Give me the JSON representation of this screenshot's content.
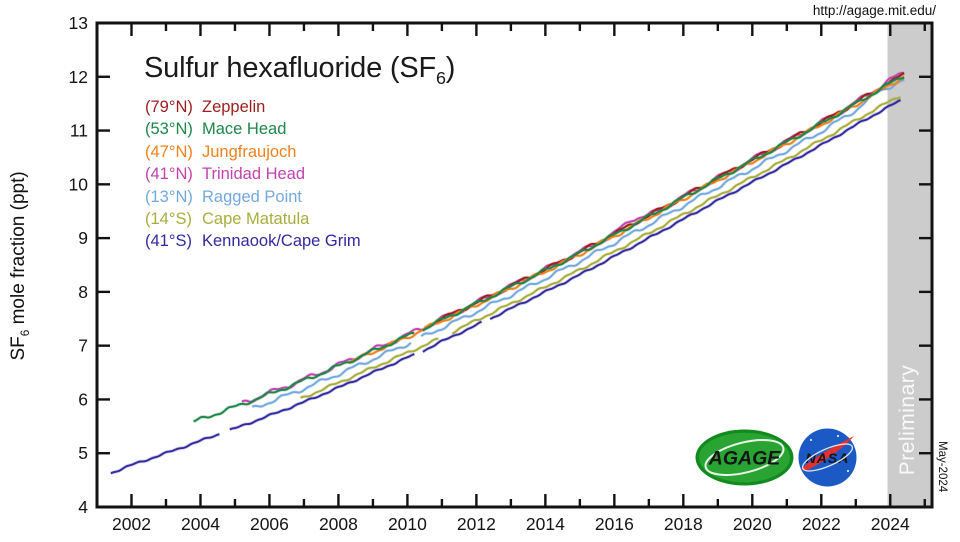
{
  "header": {
    "url": "http://agage.mit.edu/"
  },
  "title": {
    "prefix": "Sulfur hexafluoride (SF",
    "sub": "6",
    "suffix": ")"
  },
  "y_axis": {
    "label_prefix": "SF",
    "label_sub": "6",
    "label_suffix": " mole fraction (ppt)"
  },
  "logos": {
    "agage": "AGAGE",
    "nasa": "NASA"
  },
  "legend": {
    "items": [
      {
        "lat": "(79°N)",
        "name": "Zeppelin",
        "color": "#9a2020"
      },
      {
        "lat": "(53°N)",
        "name": "Mace Head",
        "color": "#1d8649"
      },
      {
        "lat": "(47°N)",
        "name": "Jungfraujoch",
        "color": "#f0821e"
      },
      {
        "lat": "(41°N)",
        "name": "Trinidad Head",
        "color": "#c243ae"
      },
      {
        "lat": "(13°N)",
        "name": "Ragged Point",
        "color": "#74a9de"
      },
      {
        "lat": "(14°S)",
        "name": "Cape Matatula",
        "color": "#a8ad3c"
      },
      {
        "lat": "(41°S)",
        "name": "Kennaook/Cape Grim",
        "color": "#322a9d"
      }
    ]
  },
  "chart_data": {
    "type": "line",
    "title": "Sulfur hexafluoride (SF6)",
    "xlabel": "",
    "ylabel": "SF6 mole fraction (ppt)",
    "xlim": [
      2001,
      2025.21
    ],
    "ylim": [
      4,
      13
    ],
    "x_major_ticks": [
      2002,
      2004,
      2006,
      2008,
      2010,
      2012,
      2014,
      2016,
      2018,
      2020,
      2022,
      2024
    ],
    "x_minor_ticks": [
      2001,
      2003,
      2005,
      2007,
      2009,
      2011,
      2013,
      2015,
      2017,
      2019,
      2021,
      2023,
      2025
    ],
    "y_ticks": [
      4,
      5,
      6,
      7,
      8,
      9,
      10,
      11,
      12,
      13
    ],
    "grid": false,
    "legend_position": "upper-left",
    "stamp": "May-2024",
    "preliminary": {
      "label": "Preliminary",
      "start_year": 2023.92,
      "color": "#cccccc"
    },
    "series": [
      {
        "name": "Ragged Point",
        "lat": "(13°N)",
        "color": "#74a9de",
        "wiggle": 0.03,
        "wiggle2": 0.012,
        "phase": 0.8,
        "segments": [
          [
            [
              2005.5,
              5.83
            ],
            [
              2006,
              5.95
            ],
            [
              2007,
              6.2
            ],
            [
              2008,
              6.47
            ],
            [
              2009,
              6.75
            ],
            [
              2010,
              7.03
            ],
            [
              2010.1,
              7.06
            ]
          ],
          [
            [
              2010.4,
              7.15
            ],
            [
              2011,
              7.33
            ],
            [
              2012,
              7.63
            ],
            [
              2013,
              7.94
            ],
            [
              2014,
              8.25
            ],
            [
              2015,
              8.57
            ],
            [
              2016,
              8.91
            ],
            [
              2017,
              9.25
            ],
            [
              2018,
              9.6
            ],
            [
              2019,
              9.95
            ],
            [
              2020,
              10.29
            ],
            [
              2021,
              10.63
            ],
            [
              2022,
              10.98
            ],
            [
              2023,
              11.38
            ],
            [
              2023.7,
              11.75
            ],
            [
              2024,
              11.82
            ],
            [
              2024.4,
              11.93
            ]
          ]
        ]
      },
      {
        "name": "Trinidad Head",
        "lat": "(41°N)",
        "color": "#c243ae",
        "wiggle": 0.038,
        "wiggle2": 0.013,
        "phase": 0.15,
        "segments": [
          [
            [
              2005.2,
              5.93
            ],
            [
              2006,
              6.12
            ],
            [
              2007,
              6.37
            ],
            [
              2008,
              6.64
            ],
            [
              2009,
              6.92
            ],
            [
              2010,
              7.2
            ],
            [
              2011,
              7.5
            ],
            [
              2012,
              7.8
            ],
            [
              2013,
              8.11
            ],
            [
              2014,
              8.42
            ],
            [
              2015,
              8.74
            ],
            [
              2016,
              9.08
            ],
            [
              2016.5,
              9.36
            ],
            [
              2017,
              9.42
            ],
            [
              2018,
              9.77
            ],
            [
              2019,
              10.12
            ],
            [
              2020,
              10.46
            ],
            [
              2021,
              10.8
            ],
            [
              2022,
              11.15
            ],
            [
              2023,
              11.52
            ],
            [
              2024,
              11.94
            ],
            [
              2024.4,
              12.08
            ]
          ]
        ]
      },
      {
        "name": "Zeppelin",
        "lat": "(79°N)",
        "color": "#9a2020",
        "wiggle": 0.03,
        "wiggle2": 0.012,
        "phase": 0.0,
        "segments": [
          [
            [
              2010.5,
              7.35
            ],
            [
              2011,
              7.5
            ],
            [
              2012,
              7.8
            ],
            [
              2013,
              8.11
            ],
            [
              2014,
              8.42
            ],
            [
              2015,
              8.74
            ],
            [
              2016,
              9.08
            ],
            [
              2017,
              9.42
            ],
            [
              2018,
              9.77
            ],
            [
              2019,
              10.12
            ],
            [
              2020,
              10.46
            ],
            [
              2021,
              10.8
            ],
            [
              2022,
              11.15
            ],
            [
              2023,
              11.52
            ],
            [
              2024,
              11.9
            ],
            [
              2024.4,
              12.04
            ]
          ]
        ]
      },
      {
        "name": "Jungfraujoch",
        "lat": "(47°N)",
        "color": "#f0821e",
        "wiggle": 0.03,
        "wiggle2": 0.012,
        "phase": 0.6,
        "segments": [
          [
            [
              2008.3,
              6.68
            ],
            [
              2009,
              6.88
            ],
            [
              2010,
              7.16
            ],
            [
              2011,
              7.46
            ],
            [
              2012,
              7.76
            ],
            [
              2013,
              8.07
            ],
            [
              2014,
              8.38
            ],
            [
              2015,
              8.7
            ],
            [
              2016,
              9.04
            ],
            [
              2017,
              9.38
            ],
            [
              2018,
              9.73
            ],
            [
              2019,
              10.08
            ],
            [
              2020,
              10.42
            ],
            [
              2021,
              10.76
            ],
            [
              2022,
              11.11
            ],
            [
              2023,
              11.48
            ],
            [
              2024,
              11.86
            ],
            [
              2024.4,
              12.0
            ]
          ]
        ]
      },
      {
        "name": "Mace Head",
        "lat": "(53°N)",
        "color": "#1d8649",
        "wiggle": 0.028,
        "wiggle2": 0.012,
        "phase": 0.3,
        "segments": [
          [
            [
              2003.8,
              5.58
            ],
            [
              2004,
              5.63
            ],
            [
              2005,
              5.86
            ],
            [
              2006,
              6.1
            ],
            [
              2007,
              6.35
            ],
            [
              2008,
              6.62
            ],
            [
              2009,
              6.9
            ],
            [
              2010,
              7.18
            ],
            [
              2010.2,
              7.23
            ]
          ],
          [
            [
              2010.45,
              7.3
            ],
            [
              2011,
              7.48
            ],
            [
              2012,
              7.78
            ],
            [
              2013,
              8.09
            ],
            [
              2014,
              8.4
            ],
            [
              2015,
              8.72
            ],
            [
              2016,
              9.06
            ],
            [
              2017,
              9.4
            ],
            [
              2018,
              9.75
            ],
            [
              2019,
              10.1
            ],
            [
              2020,
              10.44
            ],
            [
              2021,
              10.78
            ],
            [
              2022,
              11.13
            ],
            [
              2023,
              11.5
            ],
            [
              2024,
              11.88
            ],
            [
              2024.4,
              12.02
            ]
          ]
        ]
      },
      {
        "name": "Cape Matatula",
        "lat": "(14°S)",
        "color": "#a8ad3c",
        "wiggle": 0.018,
        "wiggle2": 0.01,
        "phase": 0.45,
        "segments": [
          [
            [
              2006.9,
              6.01
            ],
            [
              2007,
              6.04
            ],
            [
              2008,
              6.31
            ],
            [
              2009,
              6.59
            ],
            [
              2010,
              6.87
            ],
            [
              2010.9,
              7.12
            ]
          ],
          [
            [
              2011.3,
              7.25
            ],
            [
              2012,
              7.47
            ],
            [
              2013,
              7.78
            ],
            [
              2014,
              8.09
            ],
            [
              2015,
              8.41
            ],
            [
              2016,
              8.75
            ],
            [
              2017,
              9.09
            ],
            [
              2018,
              9.44
            ],
            [
              2019,
              9.79
            ],
            [
              2020,
              10.13
            ],
            [
              2021,
              10.47
            ],
            [
              2022,
              10.82
            ],
            [
              2023,
              11.19
            ],
            [
              2024,
              11.55
            ],
            [
              2024.3,
              11.65
            ]
          ]
        ]
      },
      {
        "name": "Kennaook/Cape Grim",
        "lat": "(41°S)",
        "color": "#322a9d",
        "wiggle": 0.012,
        "wiggle2": 0.008,
        "phase": 0.2,
        "segments": [
          [
            [
              2001.4,
              4.63
            ],
            [
              2002,
              4.78
            ],
            [
              2003,
              5.0
            ],
            [
              2004,
              5.23
            ],
            [
              2004.55,
              5.36
            ]
          ],
          [
            [
              2004.85,
              5.43
            ],
            [
              2005,
              5.46
            ],
            [
              2006,
              5.7
            ],
            [
              2007,
              5.95
            ],
            [
              2008,
              6.22
            ],
            [
              2009,
              6.5
            ],
            [
              2010,
              6.78
            ],
            [
              2010.2,
              6.83
            ]
          ],
          [
            [
              2010.45,
              6.9
            ],
            [
              2011,
              7.08
            ],
            [
              2012,
              7.38
            ],
            [
              2012.15,
              7.43
            ]
          ],
          [
            [
              2012.4,
              7.5
            ],
            [
              2013,
              7.69
            ],
            [
              2014,
              8.0
            ],
            [
              2015,
              8.32
            ],
            [
              2016,
              8.66
            ],
            [
              2017,
              9.0
            ],
            [
              2018,
              9.35
            ],
            [
              2019,
              9.7
            ],
            [
              2020,
              10.04
            ],
            [
              2021,
              10.38
            ],
            [
              2022,
              10.73
            ],
            [
              2023,
              11.1
            ],
            [
              2024,
              11.46
            ],
            [
              2024.3,
              11.56
            ]
          ]
        ]
      }
    ]
  }
}
